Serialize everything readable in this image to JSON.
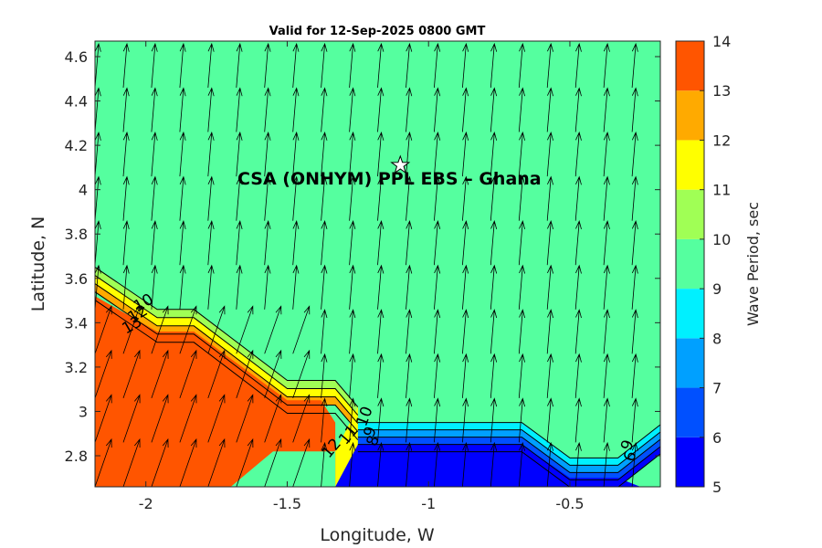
{
  "chart_data": {
    "type": "heatmap",
    "title": "Valid for 12-Sep-2025 0800 GMT",
    "xlabel": "Longitude, W",
    "ylabel": "Latitude, N",
    "xlim": [
      -2.18,
      -0.18
    ],
    "ylim": [
      2.66,
      4.67
    ],
    "x_ticks": [
      -2,
      -1.5,
      -1,
      -0.5
    ],
    "x_tick_labels": [
      "-2",
      "-1.5",
      "-1",
      "-0.5"
    ],
    "y_ticks": [
      2.8,
      3.0,
      3.2,
      3.4,
      3.6,
      3.8,
      4.0,
      4.2,
      4.4,
      4.6
    ],
    "y_tick_labels": [
      "2.8",
      "3",
      "3.2",
      "3.4",
      "3.6",
      "3.8",
      "4",
      "4.2",
      "4.4",
      "4.6"
    ],
    "colorbar": {
      "label": "Wave Period, sec",
      "min": 5,
      "max": 14,
      "ticks": [
        5,
        6,
        7,
        8,
        9,
        10,
        11,
        12,
        13,
        14
      ],
      "tick_labels": [
        "5",
        "6",
        "7",
        "8",
        "9",
        "10",
        "11",
        "12",
        "13",
        "14"
      ],
      "levels": [
        {
          "from": 5,
          "to": 6,
          "color": "#0000ff"
        },
        {
          "from": 6,
          "to": 7,
          "color": "#0050ff"
        },
        {
          "from": 7,
          "to": 8,
          "color": "#00a0ff"
        },
        {
          "from": 8,
          "to": 9,
          "color": "#00f0ff"
        },
        {
          "from": 9,
          "to": 10,
          "color": "#55ff9f"
        },
        {
          "from": 10,
          "to": 11,
          "color": "#a0ff55"
        },
        {
          "from": 11,
          "to": 12,
          "color": "#ffff00"
        },
        {
          "from": 12,
          "to": 13,
          "color": "#ffaa00"
        },
        {
          "from": 13,
          "to": 14,
          "color": "#ff5500"
        }
      ]
    },
    "region_boundary": {
      "upper": [
        [
          -2.18,
          3.65
        ],
        [
          -1.96,
          3.46
        ],
        [
          -1.83,
          3.46
        ],
        [
          -1.5,
          3.14
        ],
        [
          -1.33,
          3.14
        ],
        [
          -1.25,
          3.02
        ]
      ],
      "lower": [
        [
          -1.25,
          2.95
        ],
        [
          -1.17,
          2.95
        ],
        [
          -0.67,
          2.95
        ],
        [
          -0.5,
          2.79
        ],
        [
          -0.33,
          2.79
        ],
        [
          -0.18,
          2.94
        ]
      ],
      "high_core": [
        [
          -2.18,
          3.52
        ],
        [
          -1.96,
          3.36
        ],
        [
          -1.83,
          3.36
        ],
        [
          -1.5,
          3.05
        ],
        [
          -1.38,
          3.05
        ],
        [
          -1.33,
          2.95
        ],
        [
          -1.33,
          2.82
        ],
        [
          -1.55,
          2.82
        ],
        [
          -1.7,
          2.66
        ],
        [
          -2.18,
          2.66
        ]
      ],
      "low_core": [
        [
          -1.33,
          2.66
        ],
        [
          -1.33,
          2.82
        ],
        [
          -1.25,
          2.85
        ],
        [
          -1.17,
          2.85
        ],
        [
          -0.67,
          2.85
        ],
        [
          -0.5,
          2.7
        ],
        [
          -0.33,
          2.7
        ],
        [
          -0.25,
          2.66
        ]
      ]
    },
    "contour_labels": [
      {
        "text": "10",
        "x": -2.0,
        "y": 3.47,
        "angle": -30
      },
      {
        "text": "12",
        "x": -2.02,
        "y": 3.42,
        "angle": -30
      },
      {
        "text": "13",
        "x": -2.04,
        "y": 3.37,
        "angle": -30
      },
      {
        "text": "12",
        "x": -1.33,
        "y": 2.82,
        "angle": -50
      },
      {
        "text": "11",
        "x": -1.27,
        "y": 2.88,
        "angle": -50
      },
      {
        "text": "10",
        "x": -1.21,
        "y": 2.97,
        "angle": -70
      },
      {
        "text": "9",
        "x": -1.19,
        "y": 2.9,
        "angle": -70
      },
      {
        "text": "8",
        "x": -1.18,
        "y": 2.86,
        "angle": -70
      },
      {
        "text": "9",
        "x": -0.28,
        "y": 2.84,
        "angle": -70
      },
      {
        "text": "6",
        "x": -0.27,
        "y": 2.79,
        "angle": -70
      }
    ],
    "vector_field": {
      "description": "wave direction arrows pointing roughly north-northeast",
      "x": [
        -2.18,
        -2.08,
        -1.98,
        -1.88,
        -1.78,
        -1.68,
        -1.58,
        -1.48,
        -1.38,
        -1.28,
        -1.18,
        -1.08,
        -0.98,
        -0.88,
        -0.78,
        -0.68,
        -0.58,
        -0.48,
        -0.38,
        -0.28
      ],
      "y": [
        2.66,
        2.86,
        3.06,
        3.26,
        3.46,
        3.66,
        3.86,
        4.06,
        4.26,
        4.46
      ]
    },
    "site": {
      "label": "CSA (ONHYM) PPL EBS  – Ghana",
      "x": -1.1,
      "y": 4.11
    }
  }
}
